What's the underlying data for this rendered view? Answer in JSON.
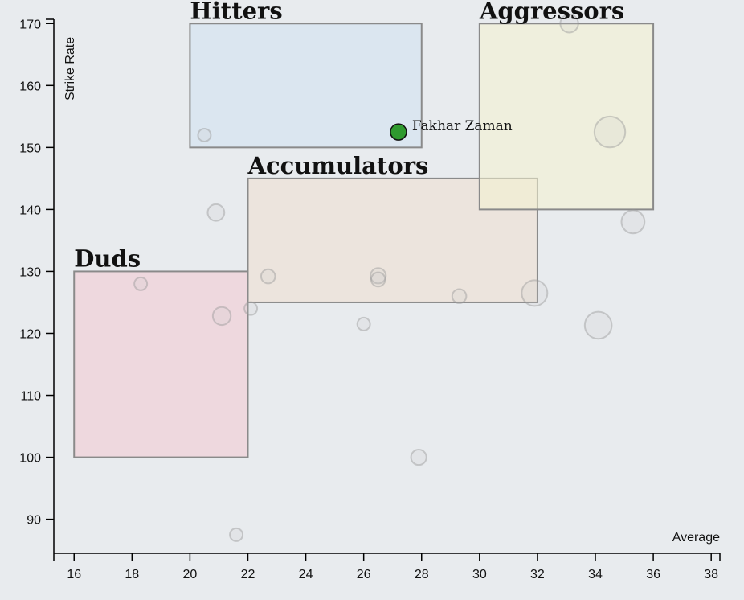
{
  "chart_data": {
    "type": "scatter",
    "xlabel": "Average",
    "ylabel": "Strike Rate",
    "xlim": [
      15.3,
      38.3
    ],
    "ylim": [
      84.5,
      172.5
    ],
    "x_ticks": [
      16,
      18,
      20,
      22,
      24,
      26,
      28,
      30,
      32,
      34,
      36,
      38
    ],
    "y_ticks": [
      90,
      100,
      110,
      120,
      130,
      140,
      150,
      160,
      170
    ],
    "zones": [
      {
        "name": "Duds",
        "x": [
          16,
          22
        ],
        "y": [
          100,
          130
        ],
        "color": "#f2c9d1"
      },
      {
        "name": "Hitters",
        "x": [
          20,
          28
        ],
        "y": [
          150,
          170
        ],
        "color": "#cfe1f3"
      },
      {
        "name": "Accumulators",
        "x": [
          22,
          32
        ],
        "y": [
          125,
          145
        ],
        "color": "#efdfcf"
      },
      {
        "name": "Aggressors",
        "x": [
          30,
          36
        ],
        "y": [
          140,
          170
        ],
        "color": "#f4f2cf"
      }
    ],
    "points": [
      {
        "x": 20.5,
        "y": 152,
        "size": 1
      },
      {
        "x": 18.3,
        "y": 128,
        "size": 1
      },
      {
        "x": 20.9,
        "y": 139.5,
        "size": 1.3
      },
      {
        "x": 21.1,
        "y": 122.8,
        "size": 1.4
      },
      {
        "x": 21.6,
        "y": 87.5,
        "size": 1
      },
      {
        "x": 22.1,
        "y": 124,
        "size": 1
      },
      {
        "x": 22.7,
        "y": 129.2,
        "size": 1.1
      },
      {
        "x": 26.0,
        "y": 121.5,
        "size": 1
      },
      {
        "x": 26.5,
        "y": 129.3,
        "size": 1.2
      },
      {
        "x": 26.5,
        "y": 128.7,
        "size": 1.1
      },
      {
        "x": 27.9,
        "y": 100,
        "size": 1.2
      },
      {
        "x": 29.3,
        "y": 126,
        "size": 1.1
      },
      {
        "x": 31.9,
        "y": 126.5,
        "size": 2
      },
      {
        "x": 33.1,
        "y": 170,
        "size": 1.4
      },
      {
        "x": 34.5,
        "y": 152.5,
        "size": 2.4
      },
      {
        "x": 34.1,
        "y": 121.3,
        "size": 2.1
      },
      {
        "x": 35.3,
        "y": 138,
        "size": 1.8
      }
    ],
    "highlight": {
      "name": "Fakhar Zaman",
      "x": 27.2,
      "y": 152.5,
      "color": "#2f9a2f"
    }
  }
}
